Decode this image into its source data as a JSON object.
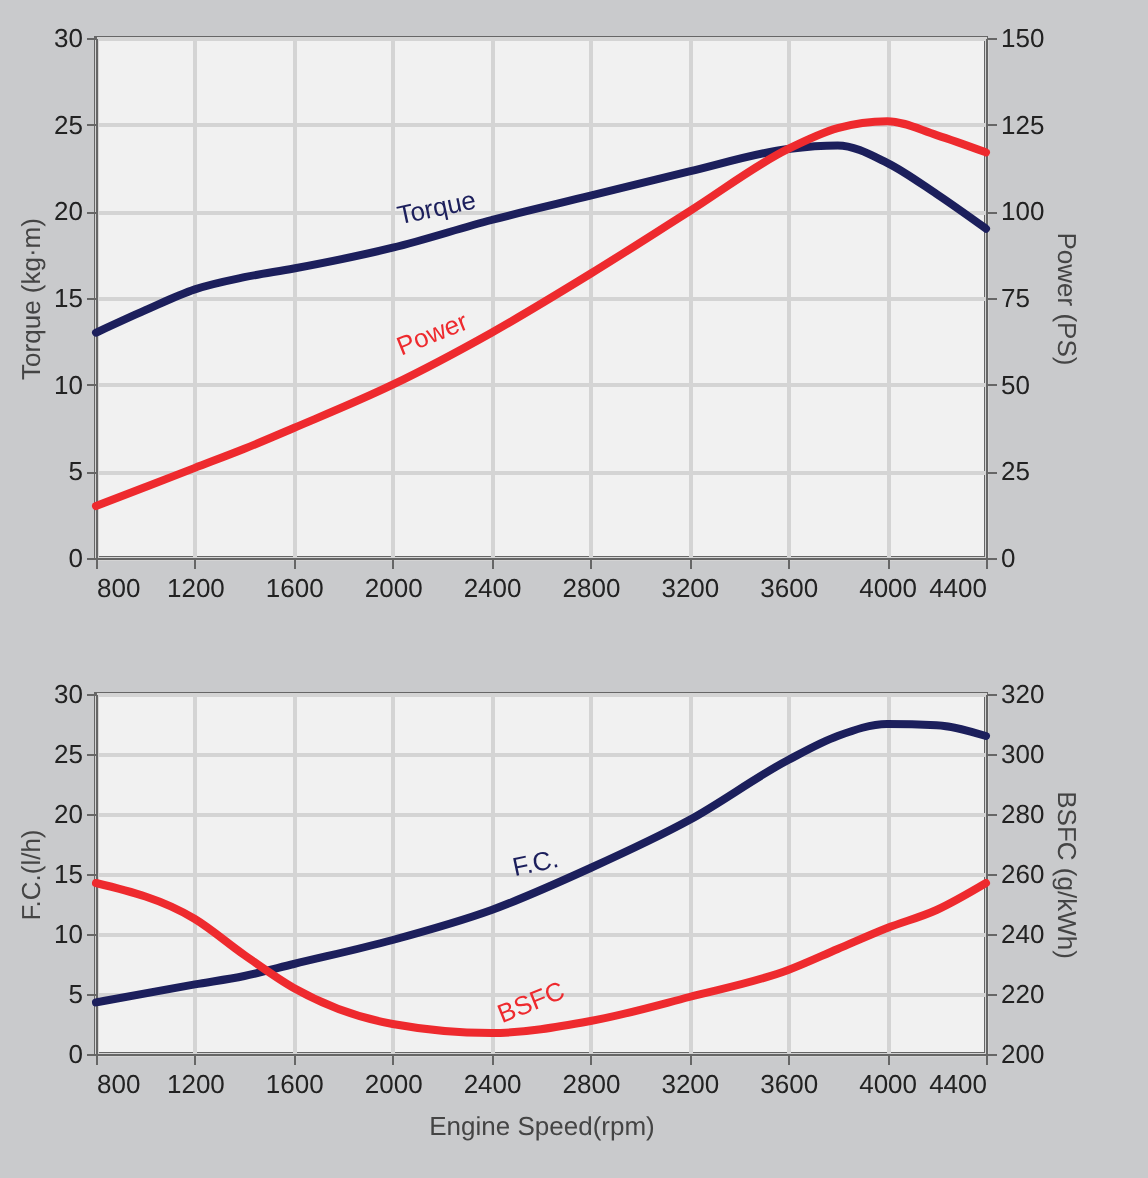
{
  "chart_data": [
    {
      "type": "line",
      "ylabel": "Torque (kg·m)",
      "y2label": "Power (PS)",
      "x": [
        800,
        1000,
        1200,
        1400,
        1600,
        2000,
        2400,
        2800,
        3200,
        3600,
        3800,
        4000,
        4200,
        4400
      ],
      "xlim": [
        800,
        4400
      ],
      "xticks": [
        800,
        1200,
        1600,
        2000,
        2400,
        2800,
        3200,
        3600,
        4000,
        4400
      ],
      "ylim": [
        0,
        30
      ],
      "yticks": [
        0,
        5,
        10,
        15,
        20,
        25,
        30
      ],
      "y2lim": [
        0,
        150
      ],
      "y2ticks": [
        0,
        25,
        50,
        75,
        100,
        125,
        150
      ],
      "grid": true,
      "legend": false,
      "series": [
        {
          "name": "Torque",
          "color": "#1c1f5c",
          "values": [
            13,
            14.3,
            15.5,
            16.2,
            16.7,
            17.9,
            19.5,
            20.9,
            22.3,
            23.6,
            23.8,
            22.8,
            21,
            19
          ]
        },
        {
          "name": "Power",
          "color": "#ee2a2e",
          "axis": "y2",
          "values": [
            15,
            20.5,
            26,
            31.5,
            37.5,
            50,
            65,
            82,
            100,
            118,
            124,
            126,
            122,
            117
          ]
        }
      ]
    },
    {
      "type": "line",
      "xlabel": "Engine Speed(rpm)",
      "ylabel": "F.C.(l/h)",
      "y2label": "BSFC (g/kWh)",
      "x": [
        800,
        1200,
        1400,
        1600,
        2000,
        2400,
        2800,
        3200,
        3600,
        3800,
        4000,
        4200,
        4400
      ],
      "xlim": [
        800,
        4400
      ],
      "xticks": [
        800,
        1200,
        1600,
        2000,
        2400,
        2800,
        3200,
        3600,
        4000,
        4400
      ],
      "ylim": [
        0,
        30
      ],
      "yticks": [
        0,
        5,
        10,
        15,
        20,
        25,
        30
      ],
      "y2lim": [
        200,
        320
      ],
      "y2ticks": [
        200,
        220,
        240,
        260,
        280,
        300,
        320
      ],
      "grid": true,
      "legend": false,
      "series": [
        {
          "name": "F.C.",
          "color": "#1c1f5c",
          "values": [
            4.3,
            5.8,
            6.5,
            7.5,
            9.5,
            12,
            15.5,
            19.5,
            24.5,
            26.5,
            27.5,
            27.4,
            26.5
          ]
        },
        {
          "name": "BSFC",
          "color": "#ee2a2e",
          "axis": "y2",
          "values": [
            257,
            245,
            233,
            222,
            210,
            207,
            211,
            219,
            228,
            235,
            242,
            248,
            257
          ]
        }
      ]
    }
  ]
}
